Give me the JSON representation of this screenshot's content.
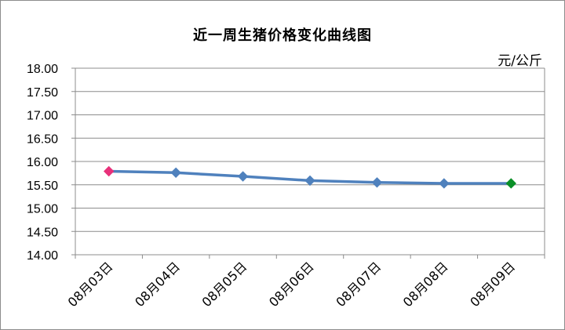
{
  "chart_data": {
    "type": "line",
    "title": "近一周生猪价格变化曲线图",
    "unit": "元/公斤",
    "categories": [
      "08月03日",
      "08月04日",
      "08月05日",
      "08月06日",
      "08月07日",
      "08月08日",
      "08月09日"
    ],
    "series": [
      {
        "values": [
          15.79,
          15.76,
          15.68,
          15.59,
          15.55,
          15.53,
          15.53
        ],
        "color": "#4f81bd"
      }
    ],
    "marker_colors": [
      "#e8317a",
      "#4f81bd",
      "#4f81bd",
      "#4f81bd",
      "#4f81bd",
      "#4f81bd",
      "#0a8f27"
    ],
    "yticks": [
      "18.00",
      "17.50",
      "17.00",
      "16.50",
      "16.00",
      "15.50",
      "15.00",
      "14.50",
      "14.00"
    ],
    "ylim": [
      14,
      18
    ],
    "grid": true,
    "legend": "none"
  }
}
